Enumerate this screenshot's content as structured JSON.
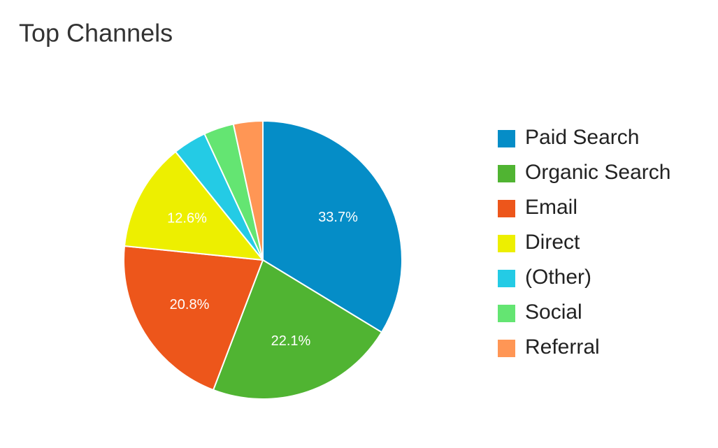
{
  "chart_data": {
    "type": "pie",
    "title": "Top Channels",
    "categories": [
      "Paid Search",
      "Organic Search",
      "Email",
      "Direct",
      "(Other)",
      "Social",
      "Referral"
    ],
    "values": [
      33.7,
      22.1,
      20.8,
      12.6,
      3.9,
      3.5,
      3.4
    ],
    "value_labels": [
      "33.7%",
      "22.1%",
      "20.8%",
      "12.6%",
      null,
      null,
      null
    ],
    "colors": [
      "#058dc7",
      "#50b432",
      "#ed561b",
      "#edef00",
      "#24cbe5",
      "#64e572",
      "#ff9655"
    ],
    "legend": "right"
  }
}
